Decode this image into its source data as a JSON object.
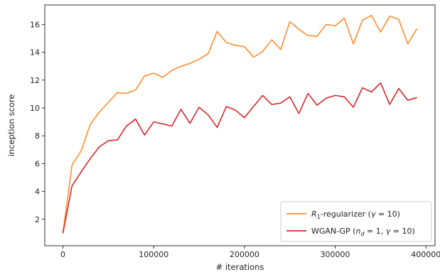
{
  "chart_data": {
    "type": "line",
    "xlabel": "# iterations",
    "ylabel": "inception score",
    "xlim": [
      -20000,
      410000
    ],
    "ylim": [
      0.1,
      17.4
    ],
    "x_ticks": [
      0,
      100000,
      200000,
      300000,
      400000
    ],
    "y_ticks": [
      2,
      4,
      6,
      8,
      10,
      12,
      14,
      16
    ],
    "grid": false,
    "legend_position": "lower-right",
    "x": [
      0,
      10000,
      20000,
      30000,
      40000,
      50000,
      60000,
      70000,
      80000,
      90000,
      100000,
      110000,
      120000,
      130000,
      140000,
      150000,
      160000,
      170000,
      180000,
      190000,
      200000,
      210000,
      220000,
      230000,
      240000,
      250000,
      260000,
      270000,
      280000,
      290000,
      300000,
      310000,
      320000,
      330000,
      340000,
      350000,
      360000,
      370000,
      380000,
      390000
    ],
    "series": [
      {
        "name_parts": {
          "prefix": "R",
          "sub": "1",
          "suffix": "-regularizer (",
          "greek": "γ",
          "eq": " = 10)"
        },
        "color": "#ff8c2e",
        "values": [
          1.0,
          5.9,
          6.9,
          8.8,
          9.7,
          10.4,
          11.1,
          11.05,
          11.3,
          12.3,
          12.5,
          12.2,
          12.7,
          13.0,
          13.2,
          13.5,
          13.9,
          15.5,
          14.7,
          14.5,
          14.4,
          13.65,
          14.05,
          14.9,
          14.2,
          16.2,
          15.65,
          15.2,
          15.15,
          16.0,
          15.9,
          16.45,
          14.6,
          16.3,
          16.65,
          15.45,
          16.6,
          16.35,
          14.6,
          15.7
        ]
      },
      {
        "name_parts": {
          "prefix": "WGAN-GP (",
          "var": "n",
          "sub": "d",
          "eq1": " = 1, ",
          "greek": "γ",
          "eq2": " = 10)"
        },
        "color": "#d62728",
        "values": [
          1.0,
          4.4,
          5.4,
          6.35,
          7.2,
          7.65,
          7.7,
          8.7,
          9.2,
          8.05,
          9.0,
          8.85,
          8.7,
          9.9,
          8.9,
          10.05,
          9.5,
          8.6,
          10.1,
          9.85,
          9.3,
          10.1,
          10.9,
          10.25,
          10.35,
          10.8,
          9.6,
          11.05,
          10.2,
          10.7,
          10.9,
          10.8,
          10.05,
          11.45,
          11.15,
          11.8,
          10.25,
          11.4,
          10.55,
          10.75
        ]
      }
    ]
  }
}
